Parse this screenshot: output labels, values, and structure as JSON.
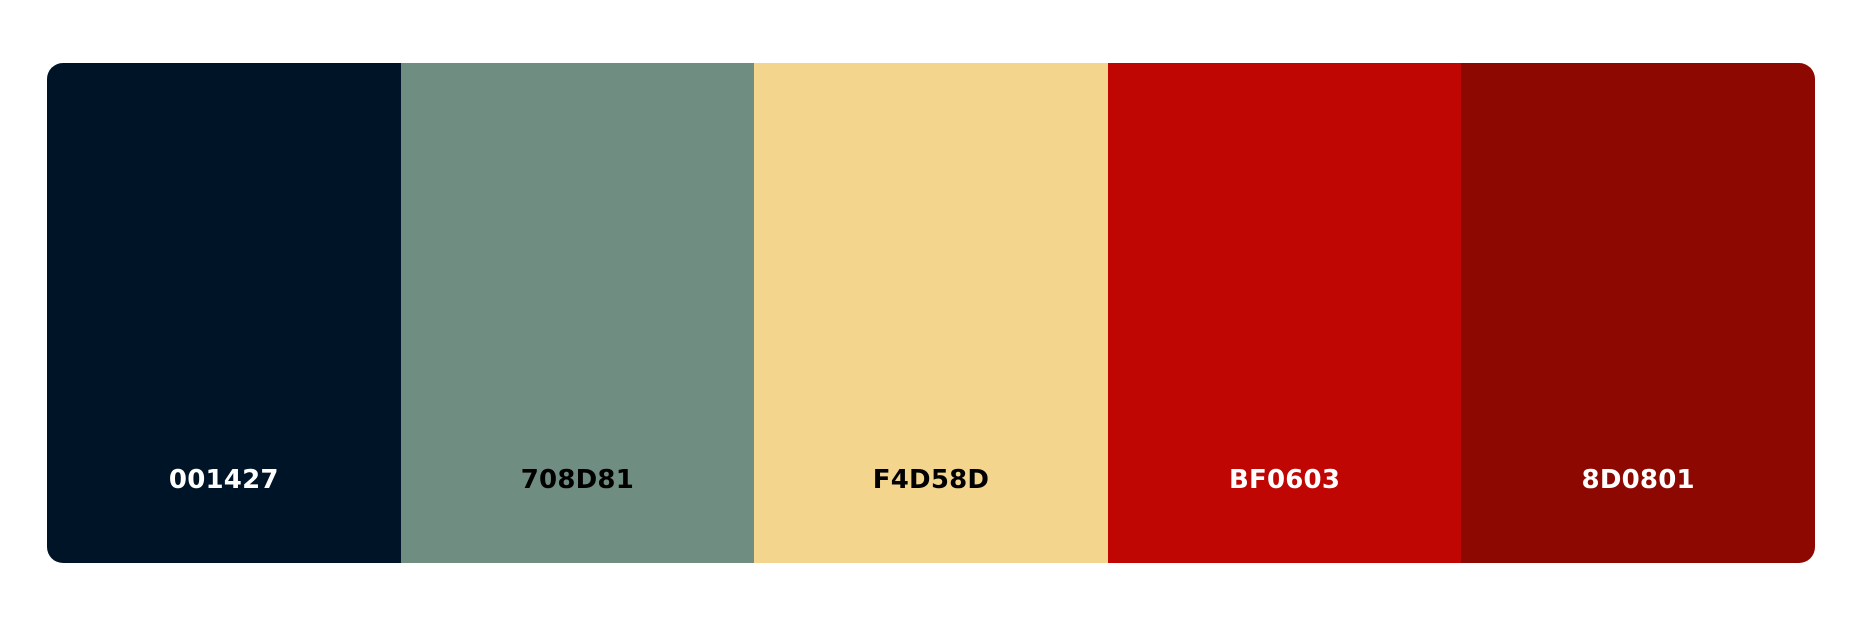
{
  "palette": {
    "swatches": [
      {
        "hex": "001427",
        "color": "#001427",
        "text_color": "#ffffff"
      },
      {
        "hex": "708D81",
        "color": "#708D81",
        "text_color": "#000000"
      },
      {
        "hex": "F4D58D",
        "color": "#F4D58D",
        "text_color": "#000000"
      },
      {
        "hex": "BF0603",
        "color": "#BF0603",
        "text_color": "#ffffff"
      },
      {
        "hex": "8D0801",
        "color": "#8D0801",
        "text_color": "#ffffff"
      }
    ]
  }
}
